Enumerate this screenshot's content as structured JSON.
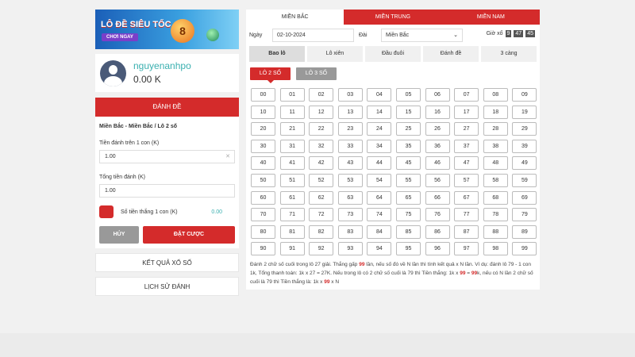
{
  "banner": {
    "title": "LÔ ĐỀ SIÊU TỐC",
    "button": "CHƠI NGAY",
    "ball_number": "8"
  },
  "user": {
    "name": "nguyenanhpo",
    "balance": "0.00 K"
  },
  "bet_form": {
    "header": "ĐÁNH ĐỀ",
    "selection": "Miền Bắc - Miền Bắc / Lô 2 số",
    "per_unit_label": "Tiền đánh trên 1 con (K)",
    "per_unit_value": "1.00",
    "total_label": "Tổng tiền đánh (K)",
    "total_value": "1.00",
    "win_label": "Số tiền thắng 1 con (K)",
    "win_value": "0.00",
    "cancel": "HỦY",
    "submit": "ĐẶT CƯỢC"
  },
  "links": {
    "results": "KẾT QUẢ XỔ SỐ",
    "history": "LỊCH SỬ ĐÁNH"
  },
  "region_tabs": [
    "MIỀN BẮC",
    "MIỀN TRUNG",
    "MIỀN NAM"
  ],
  "filters": {
    "date_label": "Ngày",
    "date_value": "02-10-2024",
    "station_label": "Đài",
    "station_value": "Miền Bắc",
    "time_label": "Giờ xổ",
    "time": [
      "9",
      "47",
      "45"
    ]
  },
  "bet_types": [
    "Bao lô",
    "Lô xiên",
    "Đầu đuôi",
    "Đánh đề",
    "3 càng"
  ],
  "sub_types": [
    "LÔ 2 SỐ",
    "LÔ 3 SỐ"
  ],
  "numbers": [
    "00",
    "01",
    "02",
    "03",
    "04",
    "05",
    "06",
    "07",
    "08",
    "09",
    "10",
    "11",
    "12",
    "13",
    "14",
    "15",
    "16",
    "17",
    "18",
    "19",
    "20",
    "21",
    "22",
    "23",
    "24",
    "25",
    "26",
    "27",
    "28",
    "29",
    "30",
    "31",
    "32",
    "33",
    "34",
    "35",
    "36",
    "37",
    "38",
    "39",
    "40",
    "41",
    "42",
    "43",
    "44",
    "45",
    "46",
    "47",
    "48",
    "49",
    "50",
    "51",
    "52",
    "53",
    "54",
    "55",
    "56",
    "57",
    "58",
    "59",
    "60",
    "61",
    "62",
    "63",
    "64",
    "65",
    "66",
    "67",
    "68",
    "69",
    "70",
    "71",
    "72",
    "73",
    "74",
    "75",
    "76",
    "77",
    "78",
    "79",
    "80",
    "81",
    "82",
    "83",
    "84",
    "85",
    "86",
    "87",
    "88",
    "89",
    "90",
    "91",
    "92",
    "93",
    "94",
    "95",
    "96",
    "97",
    "98",
    "99"
  ],
  "note": {
    "p1": "Đánh 2 chữ số cuối trong lô 27 giải. Thắng gấp ",
    "h1": "99",
    "p2": " lần, nếu số đó về N lần thì tính kết quả x N lần. Ví dụ: đánh lô 79 - 1 con 1k, Tổng thanh toán: 1k x 27 = 27K. Nếu trong lô có 2 chữ số cuối là 79 thì Tiền thắng: 1k x ",
    "h2": "99",
    "p3": " = ",
    "h3": "99",
    "p4": "k, nếu có N lần 2 chữ số cuối là 79 thì Tiền thắng là: 1k x ",
    "h4": "99",
    "p5": " x N"
  }
}
